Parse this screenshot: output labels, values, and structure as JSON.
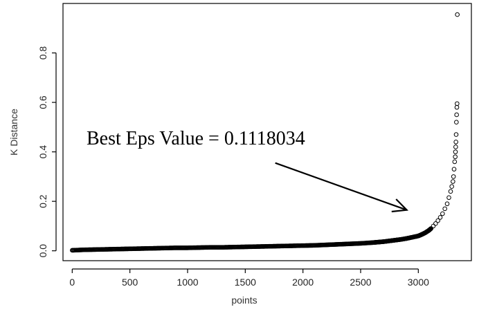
{
  "chart_data": {
    "type": "scatter",
    "title": "",
    "xlabel": "points",
    "ylabel": "K Distance",
    "xlim": [
      -80,
      3460
    ],
    "ylim": [
      -0.04,
      1.0
    ],
    "x_ticks": [
      0,
      500,
      1000,
      1500,
      2000,
      2500,
      3000
    ],
    "y_ticks": [
      0.0,
      0.2,
      0.4,
      0.6,
      0.8
    ],
    "y_tick_labels": [
      "0.0",
      "0.2",
      "0.4",
      "0.6",
      "0.8"
    ],
    "grid": false,
    "marker": "open-circle",
    "series": [
      {
        "x": [
          0,
          100,
          200,
          300,
          400,
          500,
          600,
          700,
          800,
          900,
          1000,
          1100,
          1200,
          1300,
          1400,
          1500,
          1600,
          1700,
          1800,
          1900,
          2000,
          2100,
          2200,
          2300,
          2400,
          2500,
          2600,
          2650,
          2700,
          2750,
          2800,
          2850,
          2900,
          2950,
          3000,
          3030,
          3060,
          3090,
          3110,
          3130,
          3150,
          3170,
          3190,
          3210,
          3230,
          3250,
          3265,
          3280,
          3290,
          3300,
          3305,
          3310,
          3315,
          3320,
          3322,
          3324,
          3326,
          3328,
          3330,
          3332,
          3334,
          3336,
          3338
        ],
        "y": [
          0.002,
          0.004,
          0.005,
          0.006,
          0.007,
          0.008,
          0.009,
          0.01,
          0.011,
          0.012,
          0.012,
          0.013,
          0.014,
          0.014,
          0.015,
          0.016,
          0.017,
          0.018,
          0.019,
          0.02,
          0.021,
          0.022,
          0.024,
          0.026,
          0.028,
          0.03,
          0.033,
          0.035,
          0.037,
          0.04,
          0.043,
          0.046,
          0.05,
          0.055,
          0.06,
          0.066,
          0.073,
          0.082,
          0.09,
          0.1,
          0.11,
          0.122,
          0.135,
          0.15,
          0.17,
          0.19,
          0.215,
          0.24,
          0.26,
          0.28,
          0.3,
          0.33,
          0.36,
          0.38,
          0.4,
          0.42,
          0.44,
          0.47,
          0.52,
          0.55,
          0.58,
          0.595,
          0.955
        ]
      }
    ],
    "annotation": {
      "text": "Best Eps Value  = 0.1118034",
      "arrow_from": [
        1760,
        0.355
      ],
      "arrow_to": [
        2900,
        0.165
      ]
    }
  }
}
